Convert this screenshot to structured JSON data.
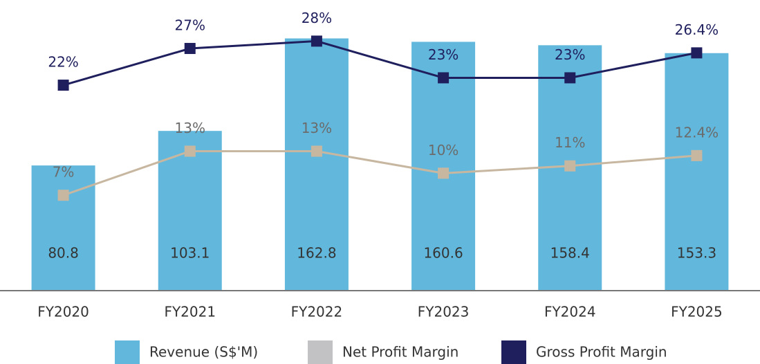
{
  "chart_data": {
    "type": "bar",
    "categories": [
      "FY2020",
      "FY2021",
      "FY2022",
      "FY2023",
      "FY2024",
      "FY2025"
    ],
    "ylim": [
      0,
      180
    ],
    "y2lim": [
      -6,
      32
    ],
    "series": [
      {
        "name": "Revenue (S$'M)",
        "type": "bar",
        "color": "#62b8dc",
        "values": [
          80.8,
          103.1,
          162.8,
          160.6,
          158.4,
          153.3
        ]
      },
      {
        "name": "Net Profit Margin",
        "type": "line",
        "axis": "y2",
        "color": "#c8b7a0",
        "legend_color": "#c2c2c4",
        "label_color": "#6b6b6b",
        "values": [
          7,
          13,
          13,
          10,
          11,
          12.4
        ],
        "value_labels": [
          "7%",
          "13%",
          "13%",
          "10%",
          "11%",
          "12.4%"
        ]
      },
      {
        "name": "Gross Profit Margin",
        "type": "line",
        "axis": "y2",
        "color": "#1f1f5e",
        "label_color": "#1f1f5e",
        "values": [
          22,
          27,
          28,
          23,
          23,
          26.4
        ],
        "value_labels": [
          "22%",
          "27%",
          "28%",
          "23%",
          "23%",
          "26.4%"
        ]
      }
    ],
    "legend": "bottom"
  }
}
